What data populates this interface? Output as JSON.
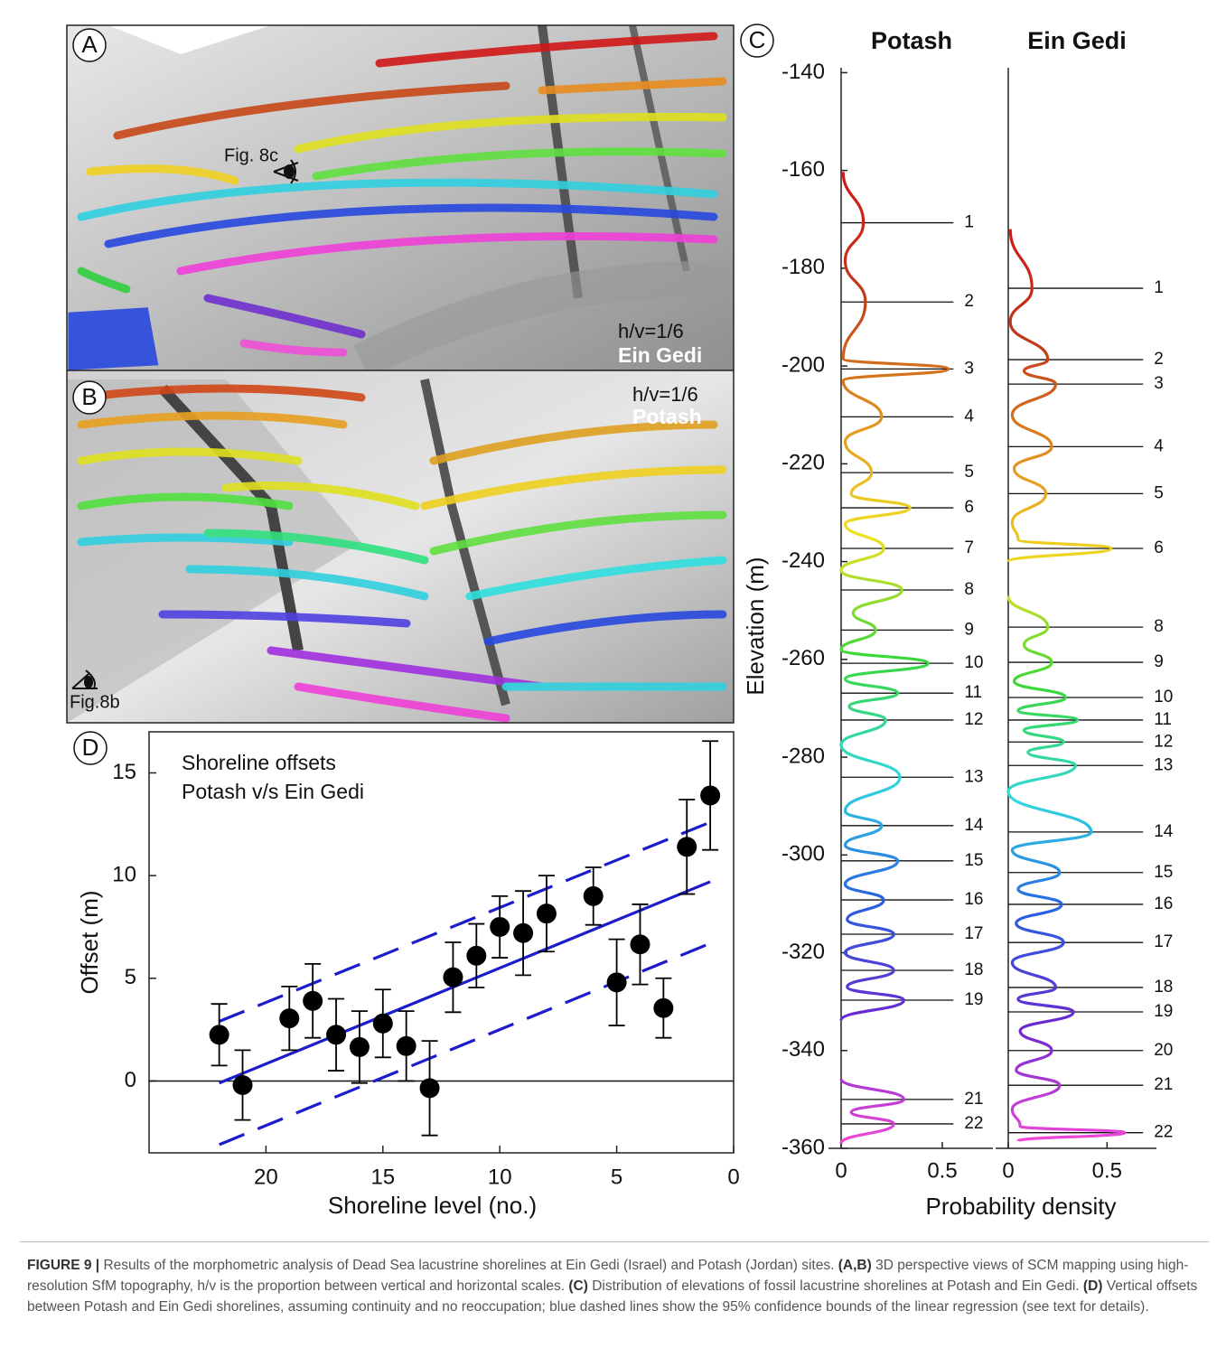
{
  "panels": {
    "a": {
      "letter": "A",
      "view": "Fig. 8c",
      "scale": "h/v=1/6",
      "site": "Ein Gedi"
    },
    "b": {
      "letter": "B",
      "scale": "h/v=1/6",
      "site": "Potash",
      "view": "Fig.8b"
    }
  },
  "chart_data": [
    {
      "type": "errorbar",
      "letter": "D",
      "annotation": [
        "Shoreline offsets",
        "Potash v/s Ein Gedi"
      ],
      "x_label": "Shoreline level (no.)",
      "y_label": "Offset (m)",
      "x": [
        22,
        21,
        19,
        18,
        17,
        16,
        15,
        14,
        13,
        12,
        11,
        10,
        9,
        8,
        6,
        5,
        4,
        3,
        2,
        1
      ],
      "values": [
        2.25,
        -0.2,
        3.05,
        3.9,
        2.25,
        1.65,
        2.8,
        1.7,
        -0.35,
        5.05,
        6.1,
        7.5,
        7.2,
        8.15,
        9.0,
        4.8,
        6.65,
        3.55,
        11.4,
        13.9
      ],
      "errors": [
        1.5,
        1.7,
        1.55,
        1.8,
        1.75,
        1.75,
        1.65,
        1.7,
        2.3,
        1.7,
        1.55,
        1.5,
        2.05,
        1.85,
        1.4,
        2.1,
        1.95,
        1.45,
        2.3,
        2.65
      ],
      "color": "#000000",
      "xlim": [
        25,
        0
      ],
      "ylim": [
        -3.5,
        17
      ],
      "xticks": [
        20,
        15,
        10,
        5,
        0
      ],
      "yticks": [
        0,
        5,
        10,
        15
      ],
      "hline": 0,
      "fit": {
        "x": [
          22,
          1
        ],
        "values": [
          -0.1,
          9.7
        ],
        "color": "#1c1ccc"
      },
      "bounds": [
        {
          "x": [
            22,
            1
          ],
          "values": [
            2.9,
            12.6
          ]
        },
        {
          "x": [
            22,
            1
          ],
          "values": [
            -3.1,
            6.7
          ]
        }
      ]
    },
    {
      "type": "density",
      "letter": "C",
      "title": "Potash",
      "y_label": "Elevation (m)",
      "x_label": "Probability density",
      "elevation": [
        -160.3,
        -170.7,
        -178.5,
        -186.9,
        -198.5,
        -200.6,
        -203.0,
        -210.4,
        -215.5,
        -221.8,
        -226.2,
        -229.0,
        -232.3,
        -237.3,
        -241.8,
        -245.8,
        -250.5,
        -254.0,
        -258.0,
        -260.8,
        -264.0,
        -266.9,
        -269.6,
        -272.4,
        -277.5,
        -284.1,
        -291.0,
        -294.0,
        -298.0,
        -301.2,
        -306.0,
        -309.2,
        -313.2,
        -316.2,
        -320.0,
        -323.6,
        -327.0,
        -329.7,
        -333.8,
        null,
        -345.8,
        -350.0,
        -352.6,
        -355.0,
        -359.0
      ],
      "density": [
        0.01,
        0.11,
        0.02,
        0.12,
        0.01,
        0.53,
        0.01,
        0.2,
        0.02,
        0.15,
        0.05,
        0.34,
        0.02,
        0.21,
        0.0,
        0.3,
        0.06,
        0.17,
        0.0,
        0.43,
        0.02,
        0.28,
        0.04,
        0.22,
        0.0,
        0.29,
        0.02,
        0.2,
        0.02,
        0.28,
        0.02,
        0.21,
        0.03,
        0.26,
        0.02,
        0.26,
        0.03,
        0.31,
        0.0,
        null,
        0.0,
        0.31,
        0.05,
        0.26,
        0.0
      ],
      "levels": [
        1,
        2,
        3,
        4,
        5,
        6,
        7,
        8,
        9,
        10,
        11,
        12,
        13,
        14,
        15,
        16,
        17,
        18,
        19,
        21,
        22
      ],
      "shorelines": [
        -170.7,
        -186.9,
        -200.6,
        -210.4,
        -221.8,
        -229.0,
        -237.3,
        -245.8,
        -254.0,
        -260.8,
        -266.9,
        -272.4,
        -284.1,
        -294.0,
        -301.2,
        -309.2,
        -316.2,
        -323.6,
        -329.7,
        -350.0,
        -355.0
      ],
      "colors": [
        "#d41818",
        "#c03a18",
        "#e09020",
        "#f0e020",
        "#38d838",
        "#30d8e0",
        "#2860e0",
        "#6a28d0",
        "#f048d8"
      ],
      "xlim": [
        0,
        0.75
      ],
      "ylim": [
        -360,
        -139
      ],
      "xticks": [
        0,
        0.5
      ],
      "yticks": [
        -140,
        -160,
        -180,
        -200,
        -220,
        -240,
        -260,
        -280,
        -300,
        -320,
        -340,
        -360
      ]
    },
    {
      "type": "density",
      "title": "Ein Gedi",
      "elevation": [
        -172.0,
        -184.1,
        -191.0,
        -198.7,
        -201.0,
        -203.7,
        -210.0,
        -216.5,
        -221.0,
        -226.1,
        -232.0,
        -235.5,
        -237.3,
        -240.0,
        null,
        -247.0,
        -253.4,
        -257.0,
        -260.6,
        -264.5,
        -267.8,
        -270.5,
        -272.4,
        -274.5,
        -276.9,
        -279.0,
        -281.7,
        -287.0,
        -295.3,
        -299.0,
        -303.6,
        -307.0,
        -310.1,
        -314.0,
        -317.9,
        -322.0,
        -327.1,
        -329.5,
        -332.1,
        -336.0,
        -340.0,
        -344.0,
        -347.1,
        -352.0,
        -355.5,
        -356.8,
        -358.5
      ],
      "density": [
        0.01,
        0.12,
        0.01,
        0.2,
        0.08,
        0.24,
        0.02,
        0.22,
        0.03,
        0.19,
        0.02,
        0.05,
        0.52,
        0.0,
        null,
        0.0,
        0.2,
        0.08,
        0.22,
        0.03,
        0.29,
        0.05,
        0.35,
        0.08,
        0.28,
        0.1,
        0.34,
        0.0,
        0.42,
        0.02,
        0.26,
        0.05,
        0.27,
        0.04,
        0.28,
        0.02,
        0.24,
        0.05,
        0.33,
        0.06,
        0.22,
        0.04,
        0.26,
        0.02,
        0.06,
        0.59,
        0.05
      ],
      "levels": [
        1,
        2,
        3,
        4,
        5,
        6,
        8,
        9,
        10,
        11,
        12,
        13,
        14,
        15,
        16,
        17,
        18,
        19,
        20,
        21,
        22
      ],
      "shorelines": [
        -184.1,
        -198.7,
        -203.7,
        -216.5,
        -226.1,
        -237.3,
        -253.4,
        -260.6,
        -267.8,
        -272.4,
        -276.9,
        -281.7,
        -295.3,
        -303.6,
        -310.1,
        -317.9,
        -327.1,
        -332.1,
        -340.0,
        -347.1,
        -356.8
      ],
      "colors": [
        "#d41818",
        "#c03a18",
        "#e09020",
        "#f0e020",
        "#38d838",
        "#30d8e0",
        "#2860e0",
        "#6a28d0",
        "#f048d8"
      ],
      "xlim": [
        0,
        0.75
      ],
      "ylim": [
        -360,
        -139
      ],
      "xticks": [
        0,
        0.5
      ]
    }
  ],
  "caption": {
    "label": "FIGURE 9 |",
    "intro": "Results of the morphometric analysis of Dead Sea lacustrine shorelines at Ein Gedi (Israel) and Potash (Jordan) sites.",
    "items": [
      {
        "tag": "(A,B)",
        "text": "3D perspective views of SCM mapping using high-resolution SfM topography, h/v is the proportion between vertical and horizontal scales."
      },
      {
        "tag": "(C)",
        "text": "Distribution of elevations of fossil lacustrine shorelines at Potash and Ein Gedi."
      },
      {
        "tag": "(D)",
        "text": "Vertical offsets between Potash and Ein Gedi shorelines, assuming continuity and no reoccupation; blue dashed lines show the 95% confidence bounds of the linear regression (see text for details)."
      }
    ]
  }
}
